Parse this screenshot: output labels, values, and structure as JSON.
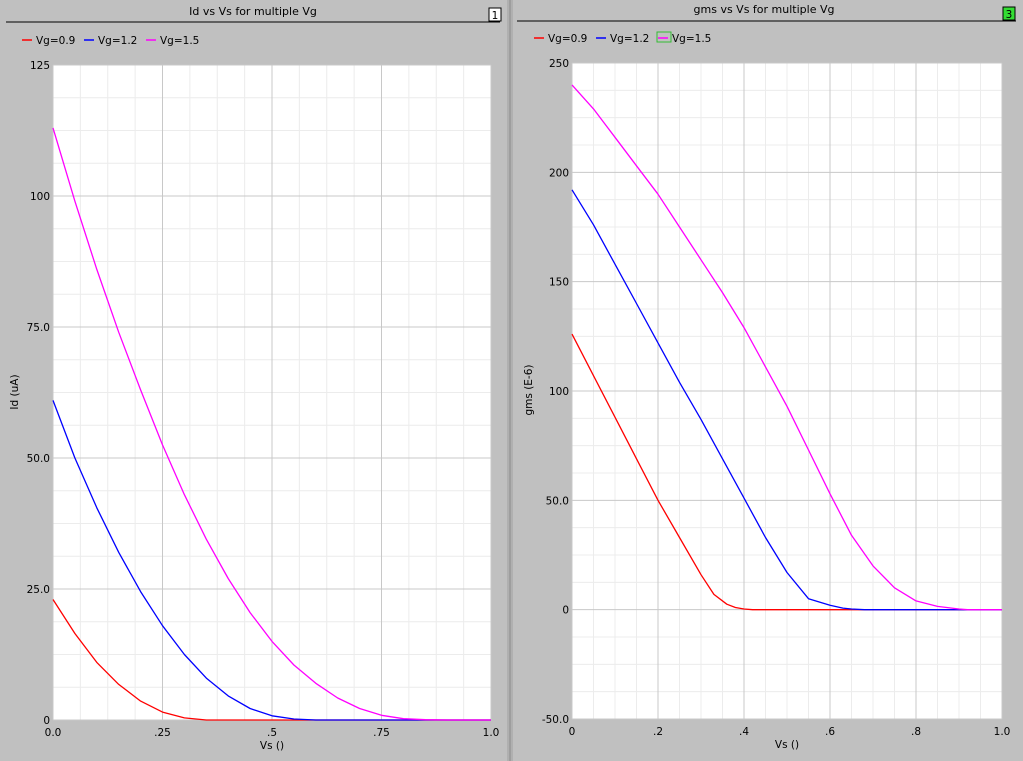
{
  "colors": {
    "background": "#c0c0c0",
    "plot_bg": "#ffffff",
    "grid_major": "#c8c8c8",
    "grid_minor": "#ececec",
    "red": "#ff0000",
    "blue": "#0000ff",
    "magenta": "#ff00ff",
    "badge_active": "#33dd33"
  },
  "panels": [
    {
      "badge": "1",
      "badge_icon": "panel-number-icon"
    },
    {
      "badge": "3",
      "badge_icon": "panel-number-icon-active"
    }
  ],
  "chart_data": [
    {
      "type": "line",
      "title": "Id vs Vs for multiple Vg",
      "xlabel": "Vs ()",
      "ylabel": "Id (uA)",
      "xlim": [
        0,
        1.0
      ],
      "ylim": [
        0,
        125
      ],
      "xticks": [
        {
          "v": 0.0,
          "label": "0.0"
        },
        {
          "v": 0.25,
          "label": ".25"
        },
        {
          "v": 0.5,
          "label": ".5"
        },
        {
          "v": 0.75,
          "label": ".75"
        },
        {
          "v": 1.0,
          "label": "1.0"
        }
      ],
      "yticks": [
        {
          "v": 0,
          "label": "0"
        },
        {
          "v": 25,
          "label": "25.0"
        },
        {
          "v": 50,
          "label": "50.0"
        },
        {
          "v": 75,
          "label": "75.0"
        },
        {
          "v": 100,
          "label": "100"
        },
        {
          "v": 125,
          "label": "125"
        }
      ],
      "grid": true,
      "legend_position": "top-left",
      "series": [
        {
          "name": "Vg=0.9",
          "color": "#ff0000",
          "x": [
            0,
            0.05,
            0.1,
            0.15,
            0.2,
            0.25,
            0.3,
            0.35,
            0.4,
            0.45,
            0.5,
            0.6,
            0.7,
            0.8,
            0.9,
            1.0
          ],
          "y": [
            23,
            16.5,
            11,
            6.8,
            3.6,
            1.5,
            0.4,
            0,
            0,
            0,
            0,
            0,
            0,
            0,
            0,
            0
          ]
        },
        {
          "name": "Vg=1.2",
          "color": "#0000ff",
          "x": [
            0,
            0.05,
            0.1,
            0.15,
            0.2,
            0.25,
            0.3,
            0.35,
            0.4,
            0.45,
            0.5,
            0.55,
            0.6,
            0.65,
            0.7,
            0.8,
            0.9,
            1.0
          ],
          "y": [
            61,
            50,
            40.5,
            32,
            24.5,
            18,
            12.5,
            8,
            4.6,
            2.2,
            0.8,
            0.2,
            0,
            0,
            0,
            0,
            0,
            0
          ]
        },
        {
          "name": "Vg=1.5",
          "color": "#ff00ff",
          "x": [
            0,
            0.05,
            0.1,
            0.15,
            0.2,
            0.25,
            0.3,
            0.35,
            0.4,
            0.45,
            0.5,
            0.55,
            0.6,
            0.65,
            0.7,
            0.75,
            0.8,
            0.85,
            0.9,
            0.95,
            1.0
          ],
          "y": [
            113,
            99,
            86,
            74,
            63,
            52.5,
            43,
            34.5,
            27,
            20.5,
            15,
            10.5,
            7,
            4.2,
            2.2,
            0.9,
            0.25,
            0.05,
            0,
            0,
            0
          ]
        }
      ]
    },
    {
      "type": "line",
      "title": "gms vs Vs for multiple Vg",
      "xlabel": "Vs ()",
      "ylabel": "gms (E-6)",
      "xlim": [
        0,
        1.0
      ],
      "ylim": [
        -50,
        250
      ],
      "xticks": [
        {
          "v": 0,
          "label": "0"
        },
        {
          "v": 0.2,
          "label": ".2"
        },
        {
          "v": 0.4,
          "label": ".4"
        },
        {
          "v": 0.6,
          "label": ".6"
        },
        {
          "v": 0.8,
          "label": ".8"
        },
        {
          "v": 1.0,
          "label": "1.0"
        }
      ],
      "yticks": [
        {
          "v": -50,
          "label": "-50.0"
        },
        {
          "v": 0,
          "label": "0"
        },
        {
          "v": 50,
          "label": "50.0"
        },
        {
          "v": 100,
          "label": "100"
        },
        {
          "v": 150,
          "label": "150"
        },
        {
          "v": 200,
          "label": "200"
        },
        {
          "v": 250,
          "label": "250"
        }
      ],
      "grid": true,
      "legend_position": "top-left",
      "series": [
        {
          "name": "Vg=0.9",
          "color": "#ff0000",
          "x": [
            0,
            0.05,
            0.1,
            0.15,
            0.2,
            0.25,
            0.3,
            0.33,
            0.36,
            0.38,
            0.4,
            0.42,
            0.45,
            0.5,
            0.6,
            0.7,
            0.8,
            0.9,
            1.0
          ],
          "y": [
            126,
            107,
            88,
            69,
            50,
            33,
            16,
            7,
            2.5,
            1,
            0.3,
            0,
            0,
            0,
            0,
            0,
            0,
            0,
            0
          ]
        },
        {
          "name": "Vg=1.2",
          "color": "#0000ff",
          "x": [
            0,
            0.05,
            0.1,
            0.15,
            0.2,
            0.25,
            0.3,
            0.35,
            0.4,
            0.45,
            0.5,
            0.55,
            0.6,
            0.63,
            0.65,
            0.68,
            0.7,
            0.8,
            0.9,
            1.0
          ],
          "y": [
            192,
            176,
            158,
            140,
            122,
            104,
            87,
            69,
            51,
            33,
            17,
            5,
            2,
            0.7,
            0.3,
            0,
            0,
            0,
            0,
            0
          ]
        },
        {
          "name": "Vg=1.5",
          "color": "#ff00ff",
          "x": [
            0,
            0.05,
            0.1,
            0.15,
            0.2,
            0.25,
            0.3,
            0.35,
            0.4,
            0.45,
            0.5,
            0.55,
            0.6,
            0.65,
            0.7,
            0.75,
            0.8,
            0.85,
            0.9,
            0.92,
            0.95,
            1.0
          ],
          "y": [
            240,
            229,
            216,
            203,
            190,
            175,
            160,
            145,
            129,
            111,
            93,
            73,
            53,
            34,
            20,
            10,
            4,
            1.5,
            0.3,
            0,
            0,
            0
          ]
        }
      ]
    }
  ]
}
